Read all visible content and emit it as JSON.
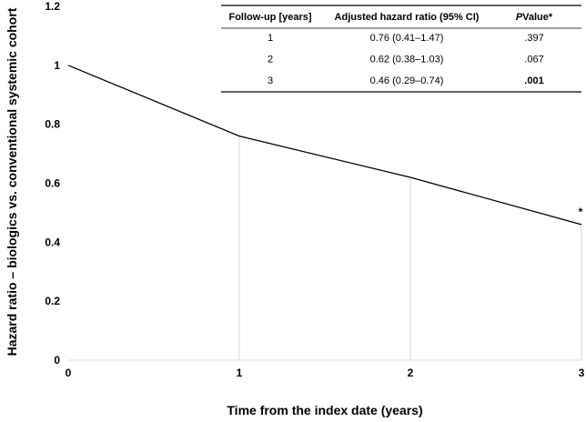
{
  "chart_data": {
    "type": "line",
    "x": [
      0,
      1,
      2,
      3
    ],
    "series": [
      {
        "values": [
          1.0,
          0.76,
          0.62,
          0.46
        ],
        "color": "#000000"
      }
    ],
    "xlabel": "Time from the index date (years)",
    "ylabel": "Hazard ratio – biologics vs. conventional systemic cohort",
    "xlim": [
      0,
      3
    ],
    "ylim": [
      0,
      1.2
    ],
    "xticks": [
      "0",
      "1",
      "2",
      "3"
    ],
    "yticks": [
      "0",
      "0.2",
      "0.4",
      "0.6",
      "0.8",
      "1",
      "1.2"
    ],
    "ytick_values": [
      0,
      0.2,
      0.4,
      0.6,
      0.8,
      1.0,
      1.2
    ],
    "grid": "vertical lines at x = 1, 2 below the curve",
    "annotations": [
      {
        "text": "*",
        "x": 3,
        "y": 0.46
      }
    ],
    "table": {
      "headers": [
        "Follow-up [years]",
        "Adjusted hazard ratio (95% CI)",
        "Value*"
      ],
      "header_p_prefix": "P",
      "rows": [
        {
          "followup": "1",
          "hr": "0.76 (0.41–1.47)",
          "p": ".397",
          "p_bold": false
        },
        {
          "followup": "2",
          "hr": "0.62 (0.38–1.03)",
          "p": ".067",
          "p_bold": false
        },
        {
          "followup": "3",
          "hr": "0.46 (0.29–0.74)",
          "p": ".001",
          "p_bold": true
        }
      ]
    }
  }
}
